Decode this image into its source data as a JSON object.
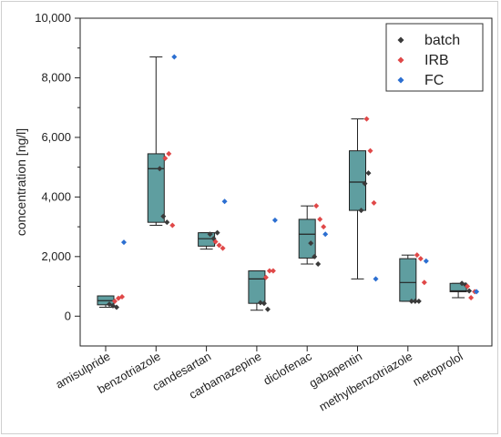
{
  "chart_data": {
    "type": "box",
    "ylabel": "concentration [ng/l]",
    "ylim": [
      -1000,
      10000
    ],
    "yticks": [
      0,
      2000,
      4000,
      6000,
      8000,
      10000
    ],
    "ytick_labels": [
      "0",
      "2,000",
      "4,000",
      "6,000",
      "8,000",
      "10,000"
    ],
    "legend_position": "top-right",
    "categories": [
      "amisulpride",
      "benzotriazole",
      "candesartan",
      "carbamazepine",
      "diclofenac",
      "gabapentin",
      "methylbenzotriazole",
      "metoprolol"
    ],
    "box_color": "#5f9ea0",
    "boxes": [
      {
        "whisker_low": 300,
        "q1": 380,
        "median": 520,
        "q3": 680,
        "whisker_high": 680
      },
      {
        "whisker_low": 3050,
        "q1": 3150,
        "median": 4950,
        "q3": 5450,
        "whisker_high": 8700
      },
      {
        "whisker_low": 2250,
        "q1": 2350,
        "median": 2600,
        "q3": 2800,
        "whisker_high": 2800
      },
      {
        "whisker_low": 200,
        "q1": 430,
        "median": 1250,
        "q3": 1520,
        "whisker_high": 1520
      },
      {
        "whisker_low": 1750,
        "q1": 1950,
        "median": 2750,
        "q3": 3250,
        "whisker_high": 3700
      },
      {
        "whisker_low": 1250,
        "q1": 3550,
        "median": 4500,
        "q3": 5550,
        "whisker_high": 6620
      },
      {
        "whisker_low": 500,
        "q1": 500,
        "median": 1130,
        "q3": 1930,
        "whisker_high": 2050
      },
      {
        "whisker_low": 620,
        "q1": 820,
        "median": 850,
        "q3": 1100,
        "whisker_high": 1100
      }
    ],
    "series": [
      {
        "name": "batch",
        "color": "#3a3a3a",
        "points": [
          [
            0,
            400
          ],
          [
            0,
            350
          ],
          [
            0,
            300
          ],
          [
            1,
            4950
          ],
          [
            1,
            3350
          ],
          [
            1,
            3150
          ],
          [
            2,
            2750
          ],
          [
            2,
            2600
          ],
          [
            2,
            2800
          ],
          [
            3,
            450
          ],
          [
            3,
            430
          ],
          [
            3,
            230
          ],
          [
            4,
            2450
          ],
          [
            4,
            2000
          ],
          [
            4,
            1750
          ],
          [
            5,
            3550
          ],
          [
            5,
            4450
          ],
          [
            5,
            4800
          ],
          [
            6,
            500
          ],
          [
            6,
            500
          ],
          [
            6,
            500
          ],
          [
            7,
            1100
          ],
          [
            7,
            1050
          ],
          [
            7,
            850
          ]
        ]
      },
      {
        "name": "IRB",
        "color": "#e04848",
        "points": [
          [
            0,
            500
          ],
          [
            0,
            600
          ],
          [
            0,
            650
          ],
          [
            1,
            5300
          ],
          [
            1,
            5450
          ],
          [
            1,
            3050
          ],
          [
            2,
            2500
          ],
          [
            2,
            2380
          ],
          [
            2,
            2280
          ],
          [
            3,
            1300
          ],
          [
            3,
            1520
          ],
          [
            3,
            1520
          ],
          [
            4,
            3700
          ],
          [
            4,
            3250
          ],
          [
            4,
            3000
          ],
          [
            5,
            6620
          ],
          [
            5,
            5550
          ],
          [
            5,
            3800
          ],
          [
            6,
            2050
          ],
          [
            6,
            1930
          ],
          [
            6,
            1130
          ],
          [
            7,
            1000
          ],
          [
            7,
            620
          ],
          [
            7,
            820
          ]
        ]
      },
      {
        "name": "FC",
        "color": "#2c6fd1",
        "points": [
          [
            0,
            2480
          ],
          [
            1,
            8700
          ],
          [
            2,
            3850
          ],
          [
            3,
            3220
          ],
          [
            4,
            2750
          ],
          [
            5,
            1250
          ],
          [
            6,
            1850
          ],
          [
            7,
            820
          ]
        ]
      }
    ]
  }
}
